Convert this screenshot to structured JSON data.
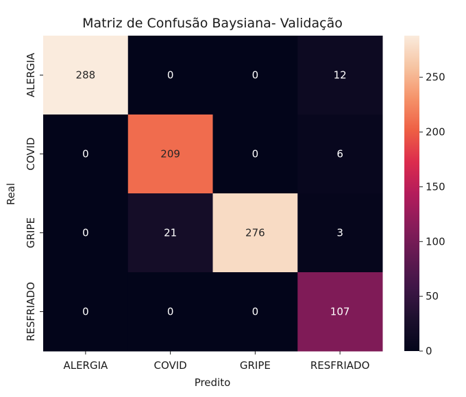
{
  "chart_data": {
    "type": "heatmap",
    "title": "Matriz de Confusão Baysiana- Validação",
    "xlabel": "Predito",
    "ylabel": "Real",
    "x_categories": [
      "ALERGIA",
      "COVID",
      "GRIPE",
      "RESFRIADO"
    ],
    "y_categories": [
      "ALERGIA",
      "COVID",
      "GRIPE",
      "RESFRIADO"
    ],
    "matrix": [
      [
        288,
        0,
        0,
        12
      ],
      [
        0,
        209,
        0,
        6
      ],
      [
        0,
        21,
        276,
        3
      ],
      [
        0,
        0,
        0,
        107
      ]
    ],
    "colormap": "rocket",
    "colorbar": {
      "min": 0,
      "max": 288,
      "ticks": [
        0,
        50,
        100,
        150,
        200,
        250
      ]
    }
  }
}
